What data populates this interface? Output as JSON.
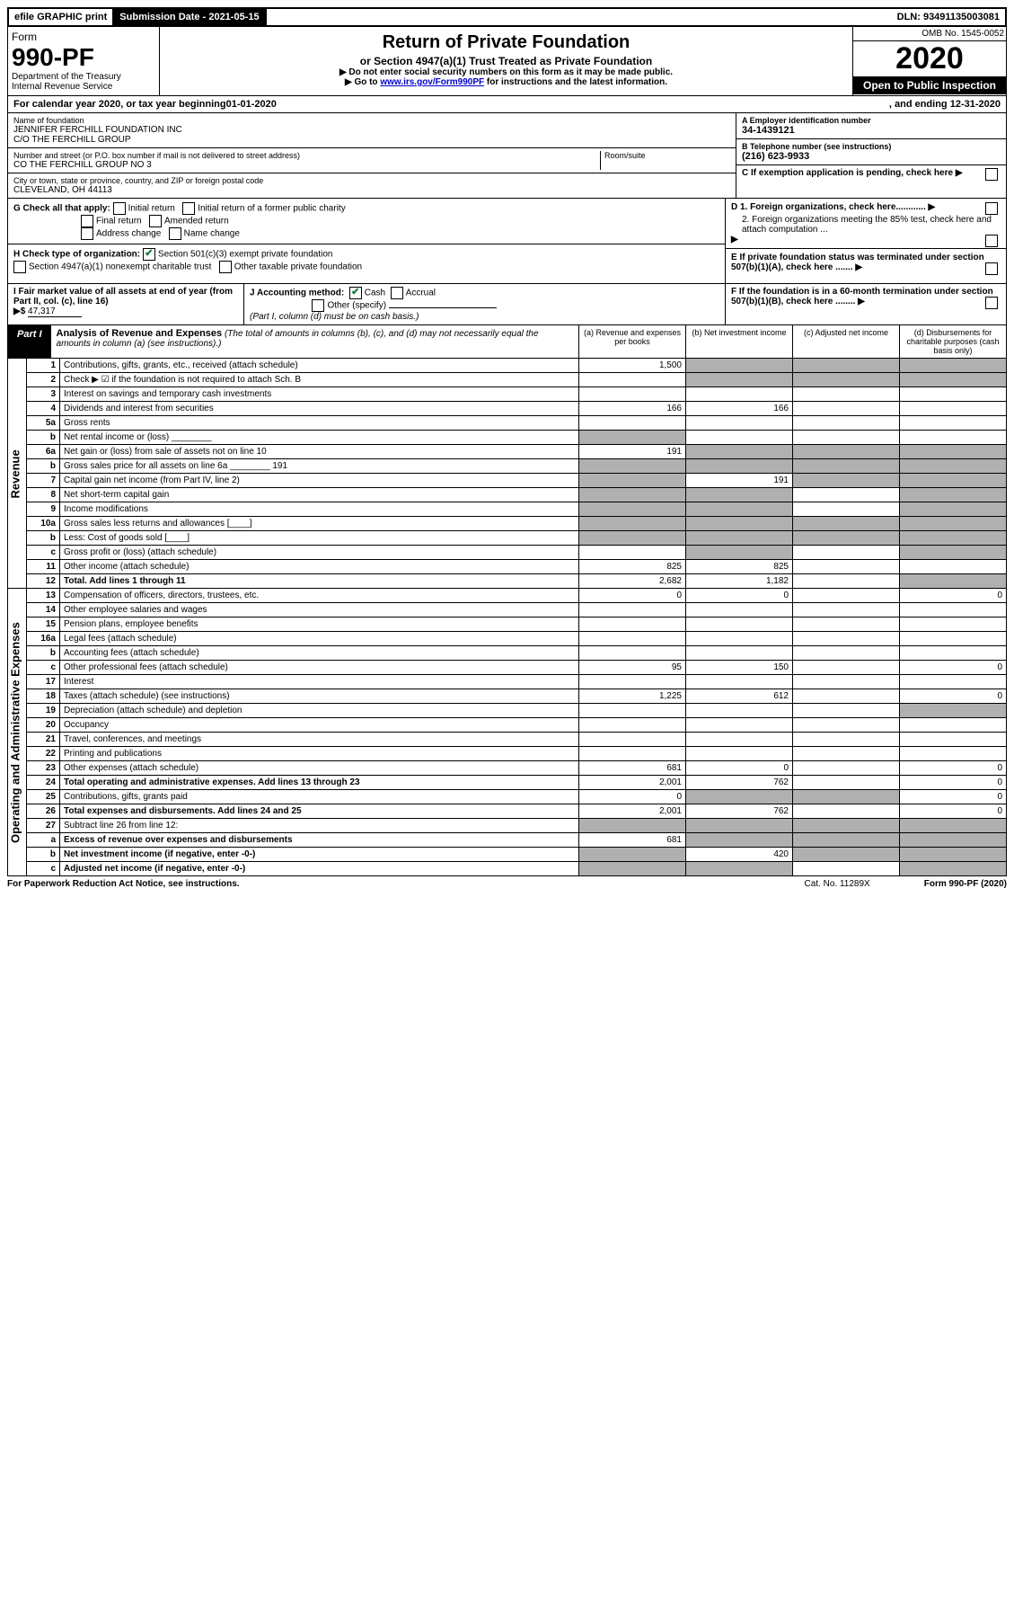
{
  "topbar": {
    "efile": "efile GRAPHIC print",
    "sub_label": "Submission Date - ",
    "sub_date": "2021-05-15",
    "dln": "DLN: 93491135003081"
  },
  "header": {
    "form": "Form",
    "num": "990-PF",
    "dept1": "Department of the Treasury",
    "dept2": "Internal Revenue Service",
    "title": "Return of Private Foundation",
    "sub": "or Section 4947(a)(1) Trust Treated as Private Foundation",
    "instr1": "▶ Do not enter social security numbers on this form as it may be made public.",
    "instr2": "▶ Go to ",
    "instr2_link": "www.irs.gov/Form990PF",
    "instr2_tail": " for instructions and the latest information.",
    "omb": "OMB No. 1545-0052",
    "year": "2020",
    "open": "Open to Public Inspection"
  },
  "cal": {
    "pre": "For calendar year 2020, or tax year beginning ",
    "begin": "01-01-2020",
    "mid": " , and ending ",
    "end": "12-31-2020"
  },
  "info": {
    "name_label": "Name of foundation",
    "name1": "JENNIFER FERCHILL FOUNDATION INC",
    "name2": "C/O THE FERCHILL GROUP",
    "addr_label": "Number and street (or P.O. box number if mail is not delivered to street address)",
    "addr": "CO THE FERCHILL GROUP NO 3",
    "room_label": "Room/suite",
    "city_label": "City or town, state or province, country, and ZIP or foreign postal code",
    "city": "CLEVELAND, OH  44113",
    "a_label": "A Employer identification number",
    "a_val": "34-1439121",
    "b_label": "B Telephone number (see instructions)",
    "b_val": "(216) 623-9933",
    "c_label": "C If exemption application is pending, check here"
  },
  "g": {
    "label": "G Check all that apply:",
    "opts": [
      "Initial return",
      "Initial return of a former public charity",
      "Final return",
      "Amended return",
      "Address change",
      "Name change"
    ]
  },
  "h": {
    "label": "H Check type of organization:",
    "opt1": "Section 501(c)(3) exempt private foundation",
    "opt2": "Section 4947(a)(1) nonexempt charitable trust",
    "opt3": "Other taxable private foundation"
  },
  "d": {
    "l1": "D 1. Foreign organizations, check here............",
    "l2": "2. Foreign organizations meeting the 85% test, check here and attach computation ..."
  },
  "e": "E  If private foundation status was terminated under section 507(b)(1)(A), check here .......",
  "f": "F  If the foundation is in a 60-month termination under section 507(b)(1)(B), check here ........",
  "i": {
    "label": "I Fair market value of all assets at end of year (from Part II, col. (c), line 16)",
    "arrow": "▶$",
    "val": "47,317"
  },
  "j": {
    "label": "J Accounting method:",
    "cash": "Cash",
    "accr": "Accrual",
    "other": "Other (specify)",
    "note": "(Part I, column (d) must be on cash basis.)"
  },
  "part1": {
    "label": "Part I",
    "title": "Analysis of Revenue and Expenses",
    "note": "(The total of amounts in columns (b), (c), and (d) may not necessarily equal the amounts in column (a) (see instructions).)",
    "cols": {
      "a": "(a)   Revenue and expenses per books",
      "b": "(b)  Net investment income",
      "c": "(c)  Adjusted net income",
      "d": "(d)  Disbursements for charitable purposes (cash basis only)"
    }
  },
  "side": {
    "rev": "Revenue",
    "exp": "Operating and Administrative Expenses"
  },
  "rows": [
    {
      "n": "1",
      "d": "Contributions, gifts, grants, etc., received (attach schedule)",
      "a": "1,500",
      "sb": true,
      "sc": true,
      "sd": true
    },
    {
      "n": "2",
      "d": "Check ▶ ☑ if the foundation is not required to attach Sch. B",
      "sb": true,
      "sc": true,
      "sd": true
    },
    {
      "n": "3",
      "d": "Interest on savings and temporary cash investments"
    },
    {
      "n": "4",
      "d": "Dividends and interest from securities",
      "a": "166",
      "b": "166"
    },
    {
      "n": "5a",
      "d": "Gross rents"
    },
    {
      "n": "b",
      "d": "Net rental income or (loss) ________",
      "sa": true
    },
    {
      "n": "6a",
      "d": "Net gain or (loss) from sale of assets not on line 10",
      "a": "191",
      "sb": true,
      "sc": true,
      "sd": true
    },
    {
      "n": "b",
      "d": "Gross sales price for all assets on line 6a ________ 191",
      "sa": true,
      "sb": true,
      "sc": true,
      "sd": true
    },
    {
      "n": "7",
      "d": "Capital gain net income (from Part IV, line 2)",
      "sa": true,
      "b": "191",
      "sc": true,
      "sd": true
    },
    {
      "n": "8",
      "d": "Net short-term capital gain",
      "sa": true,
      "sb": true,
      "sd": true
    },
    {
      "n": "9",
      "d": "Income modifications",
      "sa": true,
      "sb": true,
      "sd": true
    },
    {
      "n": "10a",
      "d": "Gross sales less returns and allowances  [____]",
      "sa": true,
      "sb": true,
      "sc": true,
      "sd": true
    },
    {
      "n": "b",
      "d": "Less: Cost of goods sold      [____]",
      "sa": true,
      "sb": true,
      "sc": true,
      "sd": true
    },
    {
      "n": "c",
      "d": "Gross profit or (loss) (attach schedule)",
      "sb": true,
      "sd": true
    },
    {
      "n": "11",
      "d": "Other income (attach schedule)",
      "a": "825",
      "b": "825"
    },
    {
      "n": "12",
      "d": "Total. Add lines 1 through 11",
      "a": "2,682",
      "b": "1,182",
      "sd": true,
      "bold": true
    }
  ],
  "exp_rows": [
    {
      "n": "13",
      "d": "Compensation of officers, directors, trustees, etc.",
      "a": "0",
      "b": "0",
      "d4": "0"
    },
    {
      "n": "14",
      "d": "Other employee salaries and wages"
    },
    {
      "n": "15",
      "d": "Pension plans, employee benefits"
    },
    {
      "n": "16a",
      "d": "Legal fees (attach schedule)"
    },
    {
      "n": "b",
      "d": "Accounting fees (attach schedule)"
    },
    {
      "n": "c",
      "d": "Other professional fees (attach schedule)",
      "a": "95",
      "b": "150",
      "d4": "0"
    },
    {
      "n": "17",
      "d": "Interest"
    },
    {
      "n": "18",
      "d": "Taxes (attach schedule) (see instructions)",
      "a": "1,225",
      "b": "612",
      "d4": "0"
    },
    {
      "n": "19",
      "d": "Depreciation (attach schedule) and depletion",
      "sd": true
    },
    {
      "n": "20",
      "d": "Occupancy"
    },
    {
      "n": "21",
      "d": "Travel, conferences, and meetings"
    },
    {
      "n": "22",
      "d": "Printing and publications"
    },
    {
      "n": "23",
      "d": "Other expenses (attach schedule)",
      "a": "681",
      "b": "0",
      "d4": "0"
    },
    {
      "n": "24",
      "d": "Total operating and administrative expenses. Add lines 13 through 23",
      "a": "2,001",
      "b": "762",
      "d4": "0",
      "bold": true
    },
    {
      "n": "25",
      "d": "Contributions, gifts, grants paid",
      "a": "0",
      "sb": true,
      "sc": true,
      "d4": "0"
    },
    {
      "n": "26",
      "d": "Total expenses and disbursements. Add lines 24 and 25",
      "a": "2,001",
      "b": "762",
      "d4": "0",
      "bold": true
    },
    {
      "n": "27",
      "d": "Subtract line 26 from line 12:",
      "sa": true,
      "sb": true,
      "sc": true,
      "sd": true
    },
    {
      "n": "a",
      "d": "Excess of revenue over expenses and disbursements",
      "a": "681",
      "sb": true,
      "sc": true,
      "sd": true,
      "bold": true
    },
    {
      "n": "b",
      "d": "Net investment income (if negative, enter -0-)",
      "sa": true,
      "b": "420",
      "sc": true,
      "sd": true,
      "bold": true
    },
    {
      "n": "c",
      "d": "Adjusted net income (if negative, enter -0-)",
      "sa": true,
      "sb": true,
      "sd": true,
      "bold": true
    }
  ],
  "footer": {
    "pra": "For Paperwork Reduction Act Notice, see instructions.",
    "cat": "Cat. No. 11289X",
    "form": "Form 990-PF (2020)"
  }
}
